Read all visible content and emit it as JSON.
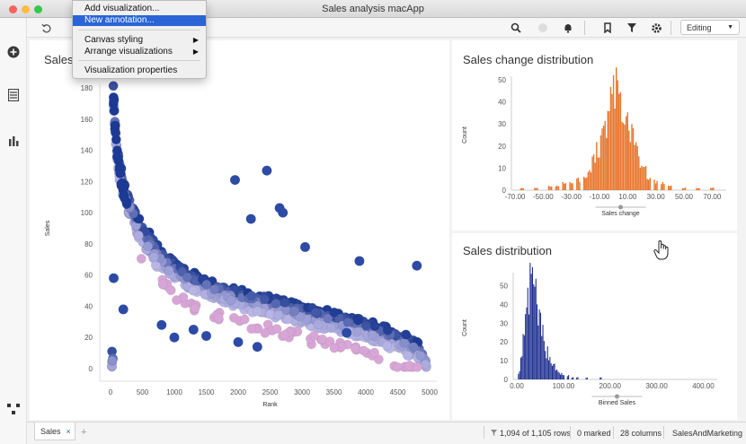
{
  "window": {
    "title": "Sales analysis macApp"
  },
  "toolbar": {
    "mode_label": "Editing",
    "icons": [
      "undo-icon",
      "search-icon",
      "circle-icon",
      "bell-icon",
      "bookmark-icon",
      "filter-icon",
      "gear-icon"
    ]
  },
  "menu": {
    "items": [
      {
        "label": "Add visualization...",
        "active": false
      },
      {
        "label": "New annotation...",
        "active": true
      },
      {
        "label": "Canvas styling",
        "submenu": true
      },
      {
        "label": "Arrange visualizations",
        "submenu": true
      },
      {
        "label": "Visualization properties",
        "submenu": false
      }
    ]
  },
  "scatter": {
    "title": "Sales",
    "xlabel": "Rank",
    "ylabel": "Sales",
    "xticks": [
      "0",
      "500",
      "1000",
      "1500",
      "2000",
      "2500",
      "3000",
      "3500",
      "4000",
      "4500",
      "5000"
    ],
    "yticks": [
      "0",
      "20",
      "40",
      "60",
      "80",
      "100",
      "120",
      "140",
      "160",
      "180"
    ]
  },
  "hist1": {
    "title": "Sales change distribution",
    "ylabel": "Count",
    "xlabel": "Sales change",
    "yticks": [
      "0",
      "10",
      "20",
      "30",
      "40",
      "50"
    ],
    "xticks": [
      "-70.00",
      "-50.00",
      "-30.00",
      "-10.00",
      "10.00",
      "30.00",
      "50.00",
      "70.00"
    ]
  },
  "hist2": {
    "title": "Sales distribution",
    "ylabel": "Count",
    "xlabel": "Binned Sales",
    "yticks": [
      "0",
      "10",
      "20",
      "30",
      "40",
      "50"
    ],
    "xticks": [
      "0.00",
      "100.00",
      "200.00",
      "300.00",
      "400.00"
    ]
  },
  "status": {
    "tab_label": "Sales",
    "tab_close": "×",
    "add_tab": "+",
    "rows": "1,094 of 1,105 rows",
    "marked": "0 marked",
    "columns": "28 columns",
    "table": "SalesAndMarketing"
  },
  "colors": {
    "accent": "#2a64d6",
    "scatter_dark": "#1c3a93",
    "scatter_light": "#b9b6e6",
    "scatter_pink": "#d7a6d6",
    "hist_orange": "#e8772f",
    "hist_navy": "#1e2f8f"
  },
  "chart_data": [
    {
      "type": "scatter",
      "title": "Sales",
      "xlabel": "Rank",
      "ylabel": "Sales",
      "xlim": [
        0,
        5000
      ],
      "ylim": [
        0,
        180
      ],
      "series": [
        {
          "x": [
            40,
            60,
            80,
            100,
            120,
            150,
            180,
            220,
            260,
            300,
            350,
            400,
            450,
            500,
            560,
            620,
            700,
            800,
            900,
            1000,
            1100,
            1200,
            1350,
            1500,
            1700,
            1900,
            2100,
            2300,
            2500,
            2700,
            3000,
            3300,
            3600,
            3900,
            4200,
            4500,
            4800,
            4950
          ],
          "y": [
            178,
            162,
            150,
            140,
            132,
            125,
            118,
            112,
            107,
            103,
            98,
            94,
            90,
            86,
            82,
            78,
            74,
            70,
            66,
            63,
            60,
            57,
            54,
            52,
            49,
            46,
            44,
            42,
            40,
            38,
            35,
            32,
            29,
            26,
            22,
            18,
            12,
            5
          ]
        }
      ],
      "outliers": {
        "x": [
          1950,
          2450,
          2650,
          2700,
          3050,
          2200,
          3900,
          4800,
          50,
          200,
          800,
          1000,
          1300,
          1500,
          2000,
          2300,
          3700
        ],
        "y": [
          121,
          127,
          103,
          100,
          78,
          96,
          69,
          66,
          58,
          38,
          28,
          20,
          25,
          21,
          17,
          14,
          23
        ]
      }
    },
    {
      "type": "bar",
      "title": "Sales change distribution",
      "xlabel": "Sales change",
      "ylabel": "Count",
      "xlim": [
        -70,
        80
      ],
      "ylim": [
        0,
        50
      ],
      "bin_centers": [
        -65,
        -55,
        -45,
        -40,
        -35,
        -30,
        -25,
        -20,
        -17,
        -14,
        -11,
        -8,
        -5,
        -2,
        1,
        4,
        7,
        10,
        13,
        16,
        19,
        22,
        25,
        30,
        35,
        40,
        50,
        60,
        70
      ],
      "values": [
        1,
        1,
        2,
        2,
        3,
        4,
        5,
        7,
        10,
        13,
        18,
        24,
        30,
        38,
        48,
        42,
        35,
        30,
        24,
        18,
        13,
        9,
        6,
        4,
        3,
        2,
        1,
        1,
        1
      ]
    },
    {
      "type": "bar",
      "title": "Sales distribution",
      "xlabel": "Binned Sales",
      "ylabel": "Count",
      "xlim": [
        0,
        430
      ],
      "ylim": [
        0,
        55
      ],
      "bin_centers": [
        5,
        10,
        15,
        20,
        25,
        30,
        35,
        40,
        45,
        50,
        55,
        60,
        65,
        70,
        75,
        80,
        85,
        90,
        95,
        100,
        110,
        120,
        130,
        150,
        180
      ],
      "values": [
        4,
        10,
        20,
        33,
        42,
        50,
        52,
        45,
        36,
        30,
        24,
        19,
        15,
        12,
        9,
        7,
        5,
        4,
        3,
        2,
        2,
        1,
        1,
        1,
        1
      ]
    }
  ]
}
